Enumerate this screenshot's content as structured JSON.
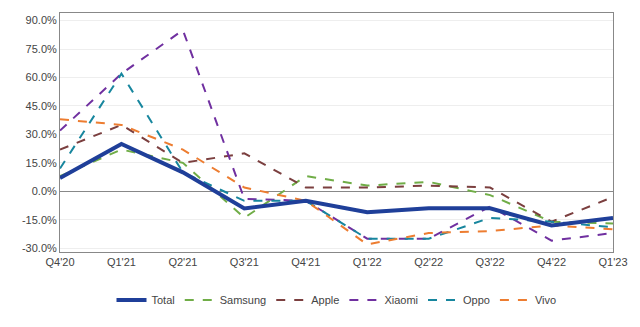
{
  "chart_data": {
    "type": "line",
    "categories": [
      "Q4'20",
      "Q1'21",
      "Q2'21",
      "Q3'21",
      "Q4'21",
      "Q1'22",
      "Q2'22",
      "Q3'22",
      "Q4'22",
      "Q1'23"
    ],
    "series": [
      {
        "name": "Samsung",
        "color": "#70AD47",
        "line_style": "dashed",
        "values": [
          0.08,
          0.22,
          0.15,
          -0.14,
          0.08,
          0.03,
          0.05,
          -0.02,
          -0.16,
          -0.17
        ]
      },
      {
        "name": "Apple",
        "color": "#7B3F3F",
        "line_style": "dashed",
        "values": [
          0.22,
          0.35,
          0.15,
          0.2,
          0.02,
          0.02,
          0.03,
          0.02,
          -0.16,
          -0.03
        ]
      },
      {
        "name": "Xiaomi",
        "color": "#7030A0",
        "line_style": "dashed",
        "values": [
          0.32,
          0.62,
          0.85,
          -0.04,
          -0.05,
          -0.25,
          -0.25,
          -0.08,
          -0.26,
          -0.22
        ]
      },
      {
        "name": "Oppo",
        "color": "#17869E",
        "line_style": "dashed",
        "values": [
          0.12,
          0.62,
          0.1,
          -0.05,
          -0.05,
          -0.25,
          -0.25,
          -0.14,
          -0.16,
          -0.19
        ]
      },
      {
        "name": "Vivo",
        "color": "#ED7D31",
        "line_style": "dashed",
        "values": [
          0.38,
          0.35,
          0.22,
          0.02,
          -0.05,
          -0.28,
          -0.22,
          -0.21,
          -0.18,
          -0.2
        ]
      },
      {
        "name": "Total",
        "color": "#1F3F99",
        "line_style": "solid",
        "values": [
          0.07,
          0.25,
          0.1,
          -0.09,
          -0.05,
          -0.11,
          -0.09,
          -0.09,
          -0.18,
          -0.14
        ]
      }
    ],
    "ylim": [
      -0.32,
      0.94
    ],
    "yticks": [
      {
        "value": -0.3,
        "label": "-30.0%"
      },
      {
        "value": -0.15,
        "label": "-15.0%"
      },
      {
        "value": 0.0,
        "label": "0.0%"
      },
      {
        "value": 0.15,
        "label": "15.0%"
      },
      {
        "value": 0.3,
        "label": "30.0%"
      },
      {
        "value": 0.45,
        "label": "45.0%"
      },
      {
        "value": 0.6,
        "label": "60.0%"
      },
      {
        "value": 0.75,
        "label": "75.0%"
      },
      {
        "value": 0.9,
        "label": "90.0%"
      }
    ],
    "grid": true,
    "legend": "bottom"
  }
}
